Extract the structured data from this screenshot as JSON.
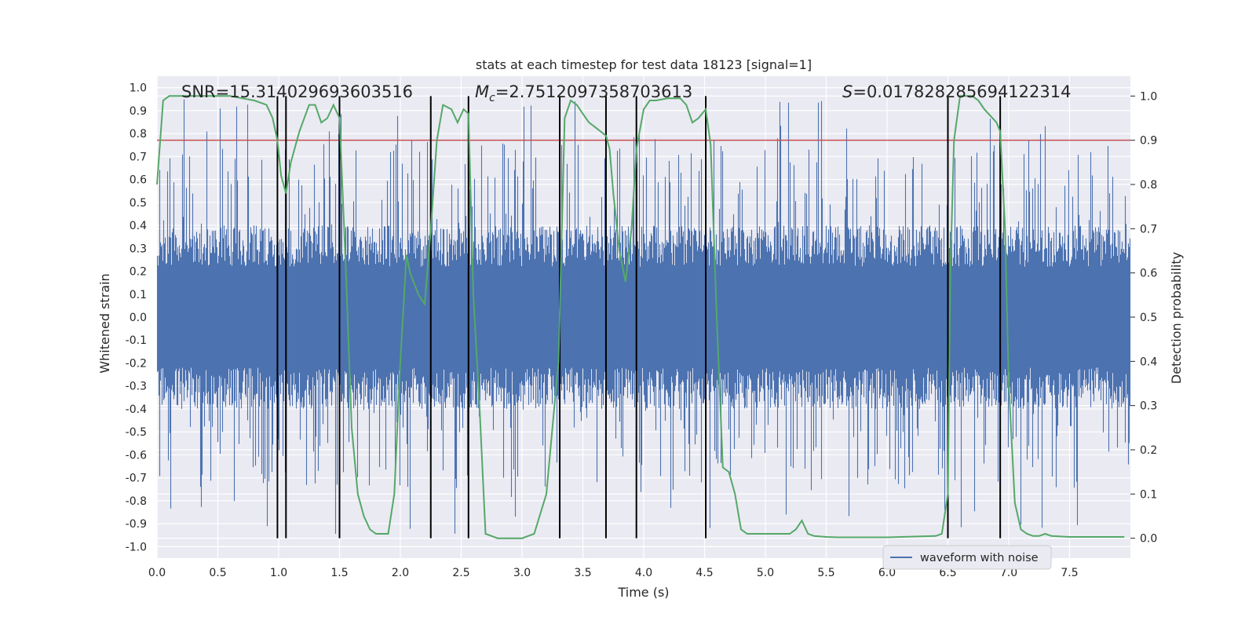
{
  "chart_data": {
    "type": "line",
    "title": "stats at each timestep for test data 18123 [signal=1]",
    "xlabel": "Time (s)",
    "ylabel": "Whitened strain",
    "y2label": "Detection probability",
    "xlim": [
      0.0,
      8.0
    ],
    "ylim": [
      -1.05,
      1.05
    ],
    "y2lim": [
      -0.045,
      1.045
    ],
    "x_ticks": [
      "0.0",
      "0.5",
      "1.0",
      "1.5",
      "2.0",
      "2.5",
      "3.0",
      "3.5",
      "4.0",
      "4.5",
      "5.0",
      "5.5",
      "6.0",
      "6.5",
      "7.0",
      "7.5"
    ],
    "y_ticks": [
      "1.0",
      "0.9",
      "0.8",
      "0.7",
      "0.6",
      "0.5",
      "0.4",
      "0.3",
      "0.2",
      "0.1",
      "0.0",
      "-0.1",
      "-0.2",
      "-0.3",
      "-0.4",
      "-0.5",
      "-0.6",
      "-0.7",
      "-0.8",
      "-0.9",
      "-1.0"
    ],
    "y2_ticks": [
      "1.0",
      "0.9",
      "0.8",
      "0.7",
      "0.6",
      "0.5",
      "0.4",
      "0.3",
      "0.2",
      "0.1",
      "0.0"
    ],
    "annotations": {
      "snr": "SNR=15.314029693603516",
      "mc_symbol": "M",
      "mc_sub": "c",
      "mc_value": "=2.7512097358703613",
      "s_symbol": "S",
      "s_value": "=0.017828285694122314"
    },
    "legend": {
      "label": "waveform with noise",
      "location": "lower-right"
    },
    "threshold": {
      "value": 0.9,
      "axis": "y2",
      "color": "#c44e52"
    },
    "event_markers": [
      0.99,
      1.06,
      1.5,
      2.25,
      2.56,
      3.31,
      3.69,
      3.94,
      4.51,
      6.5,
      6.93
    ],
    "waveform": {
      "name": "waveform with noise",
      "color": "#4c72b0",
      "envelope_typical": 0.4,
      "note": "dense noise series; envelope ~±0.4 with spikes to ±0.95"
    },
    "series": [
      {
        "name": "Detection probability",
        "axis": "y2",
        "color": "#55a868",
        "x": [
          0.0,
          0.05,
          0.1,
          0.2,
          0.3,
          0.5,
          0.6,
          0.7,
          0.8,
          0.9,
          0.95,
          0.99,
          1.02,
          1.06,
          1.1,
          1.17,
          1.25,
          1.3,
          1.35,
          1.4,
          1.45,
          1.5,
          1.55,
          1.6,
          1.65,
          1.7,
          1.75,
          1.8,
          1.85,
          1.9,
          1.95,
          2.0,
          2.05,
          2.08,
          2.15,
          2.2,
          2.25,
          2.3,
          2.35,
          2.42,
          2.47,
          2.52,
          2.56,
          2.6,
          2.65,
          2.7,
          2.8,
          3.0,
          3.1,
          3.2,
          3.3,
          3.35,
          3.4,
          3.45,
          3.5,
          3.55,
          3.6,
          3.69,
          3.72,
          3.75,
          3.8,
          3.85,
          3.9,
          3.94,
          4.0,
          4.05,
          4.1,
          4.2,
          4.3,
          4.35,
          4.4,
          4.45,
          4.51,
          4.55,
          4.6,
          4.65,
          4.7,
          4.75,
          4.8,
          4.85,
          4.9,
          4.95,
          5.0,
          5.05,
          5.1,
          5.2,
          5.25,
          5.3,
          5.35,
          5.4,
          5.5,
          5.6,
          6.0,
          6.4,
          6.45,
          6.5,
          6.52,
          6.55,
          6.6,
          6.7,
          6.75,
          6.8,
          6.9,
          6.93,
          6.97,
          7.0,
          7.05,
          7.1,
          7.15,
          7.2,
          7.25,
          7.3,
          7.35,
          7.5,
          7.7,
          7.9,
          7.95
        ],
        "values": [
          0.8,
          0.99,
          1.0,
          1.0,
          1.0,
          1.0,
          1.0,
          0.995,
          0.99,
          0.98,
          0.95,
          0.9,
          0.82,
          0.78,
          0.85,
          0.92,
          0.98,
          0.98,
          0.94,
          0.95,
          0.98,
          0.95,
          0.62,
          0.25,
          0.1,
          0.05,
          0.02,
          0.01,
          0.01,
          0.01,
          0.1,
          0.4,
          0.64,
          0.6,
          0.55,
          0.53,
          0.7,
          0.9,
          0.98,
          0.97,
          0.94,
          0.97,
          0.96,
          0.55,
          0.3,
          0.01,
          0.0,
          0.0,
          0.01,
          0.1,
          0.4,
          0.95,
          0.99,
          0.98,
          0.96,
          0.94,
          0.93,
          0.91,
          0.88,
          0.78,
          0.65,
          0.58,
          0.7,
          0.88,
          0.97,
          0.99,
          0.99,
          0.995,
          0.995,
          0.98,
          0.94,
          0.95,
          0.97,
          0.89,
          0.5,
          0.16,
          0.15,
          0.1,
          0.02,
          0.01,
          0.01,
          0.01,
          0.01,
          0.01,
          0.01,
          0.01,
          0.02,
          0.04,
          0.01,
          0.005,
          0.003,
          0.002,
          0.002,
          0.005,
          0.01,
          0.1,
          0.6,
          0.9,
          1.0,
          1.0,
          0.99,
          0.97,
          0.94,
          0.92,
          0.7,
          0.35,
          0.08,
          0.02,
          0.01,
          0.005,
          0.005,
          0.01,
          0.005,
          0.003,
          0.003,
          0.003,
          0.003
        ]
      }
    ]
  }
}
